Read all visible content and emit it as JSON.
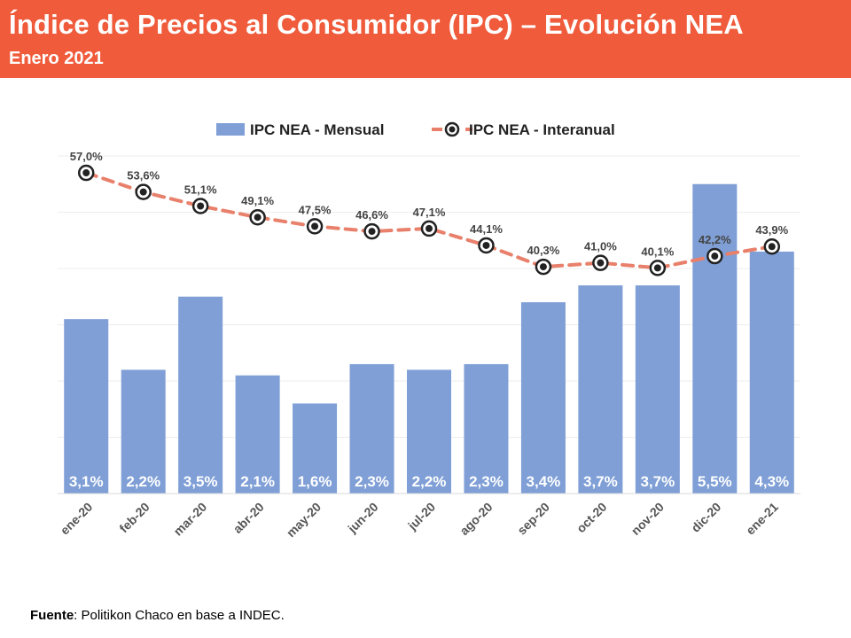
{
  "header": {
    "title": "Índice de Precios al Consumidor (IPC) – Evolución NEA",
    "subtitle": "Enero 2021"
  },
  "footer": {
    "source_label": "Fuente",
    "source_text": ": Politikon Chaco en base a INDEC."
  },
  "colors": {
    "header_bg": "#EF5B3B",
    "bar": "#7F9FD6",
    "line": "#E8806B",
    "marker": "#222222"
  },
  "chart_data": {
    "type": "bar",
    "title": "",
    "xlabel": "",
    "ylabel": "",
    "categories": [
      "ene-20",
      "feb-20",
      "mar-20",
      "abr-20",
      "may-20",
      "jun-20",
      "jul-20",
      "ago-20",
      "sep-20",
      "oct-20",
      "nov-20",
      "dic-20",
      "ene-21"
    ],
    "series": [
      {
        "name": "IPC NEA - Mensual",
        "kind": "bar",
        "axis": "left",
        "values": [
          3.1,
          2.2,
          3.5,
          2.1,
          1.6,
          2.3,
          2.2,
          2.3,
          3.4,
          3.7,
          3.7,
          5.5,
          4.3
        ],
        "labels": [
          "3,1%",
          "2,2%",
          "3,5%",
          "2,1%",
          "1,6%",
          "2,3%",
          "2,2%",
          "2,3%",
          "3,4%",
          "3,7%",
          "3,7%",
          "5,5%",
          "4,3%"
        ]
      },
      {
        "name": "IPC NEA - Interanual",
        "kind": "line",
        "axis": "right",
        "values": [
          57.0,
          53.6,
          51.1,
          49.1,
          47.5,
          46.6,
          47.1,
          44.1,
          40.3,
          41.0,
          40.1,
          42.2,
          43.9
        ],
        "labels": [
          "57,0%",
          "53,6%",
          "51,1%",
          "49,1%",
          "47,5%",
          "46,6%",
          "47,1%",
          "44,1%",
          "40,3%",
          "41,0%",
          "40,1%",
          "42,2%",
          "43,9%"
        ]
      }
    ],
    "ylim_left": [
      0,
      6
    ],
    "ylim_right": [
      0,
      60
    ],
    "grid": true,
    "legend_position": "top-center"
  }
}
